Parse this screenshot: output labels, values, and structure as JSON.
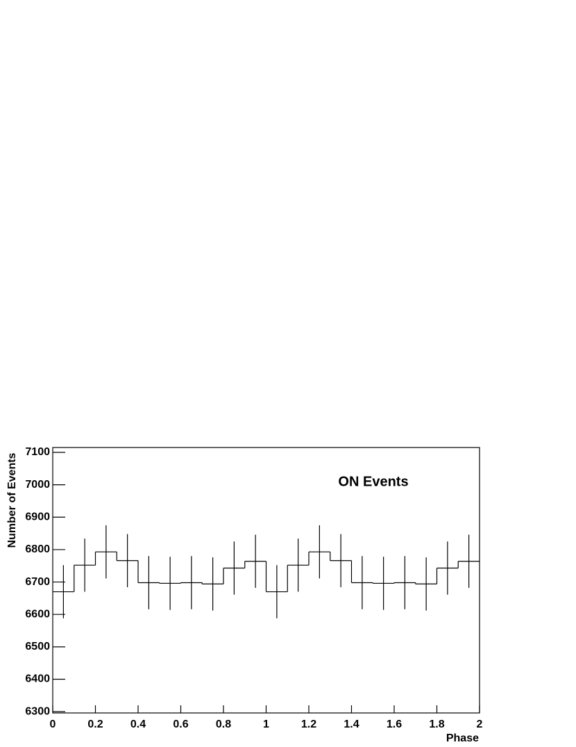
{
  "chart_data": {
    "type": "histogram",
    "title": "ON Events",
    "xlabel": "Phase",
    "ylabel": "Number of Events",
    "bins": [
      0,
      0.1,
      0.2,
      0.3,
      0.4,
      0.5,
      0.6,
      0.7,
      0.8,
      0.9,
      1,
      1.1,
      1.2,
      1.3,
      1.4,
      1.5,
      1.6,
      1.7,
      1.8,
      1.9,
      2
    ],
    "values": [
      6670,
      6752,
      6793,
      6766,
      6698,
      6696,
      6698,
      6694,
      6743,
      6764,
      6670,
      6752,
      6793,
      6766,
      6698,
      6696,
      6698,
      6694,
      6743,
      6764
    ],
    "errors": [
      82,
      82,
      82,
      82,
      82,
      82,
      82,
      82,
      82,
      82,
      82,
      82,
      82,
      82,
      82,
      82,
      82,
      82,
      82,
      82
    ],
    "color": "#000000",
    "xlim": [
      0,
      2
    ],
    "xticks": [
      0,
      0.2,
      0.4,
      0.6,
      0.8,
      1,
      1.2,
      1.4,
      1.6,
      1.8,
      2
    ],
    "ylim": [
      6296,
      7115
    ],
    "yticks": [
      6300,
      6400,
      6500,
      6600,
      6700,
      6800,
      6900,
      7000,
      7100
    ],
    "grid": false
  }
}
